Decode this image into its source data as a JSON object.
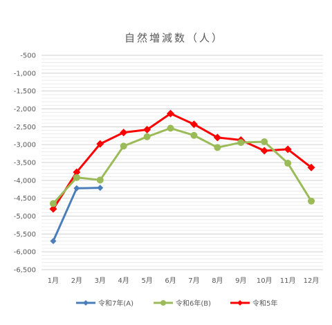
{
  "chart_data": {
    "type": "line",
    "title": "自然増減数（人）",
    "categories": [
      "1月",
      "2月",
      "3月",
      "4月",
      "5月",
      "6月",
      "7月",
      "8月",
      "9月",
      "10月",
      "11月",
      "12月"
    ],
    "ylim": [
      -6500,
      -500
    ],
    "y_ticks": [
      -500,
      -1000,
      -1500,
      -2000,
      -2500,
      -3000,
      -3500,
      -4000,
      -4500,
      -5000,
      -5500,
      -6000,
      -6500
    ],
    "y_tick_labels": [
      "-500",
      "-1,000",
      "-1,500",
      "-2,000",
      "-2,500",
      "-3,000",
      "-3,500",
      "-4,000",
      "-4,500",
      "-5,000",
      "-5,500",
      "-6,000",
      "-6,500"
    ],
    "grid": true,
    "legend_position": "bottom",
    "series": [
      {
        "name": "令和7年(A)",
        "color": "#4a7ebb",
        "marker": "diamond",
        "values": [
          -5700,
          -4220,
          -4210,
          null,
          null,
          null,
          null,
          null,
          null,
          null,
          null,
          null
        ]
      },
      {
        "name": "令和6年(B)",
        "color": "#9bbb59",
        "marker": "circle",
        "values": [
          -4650,
          -3920,
          -3990,
          -3040,
          -2780,
          -2540,
          -2740,
          -3080,
          -2940,
          -2920,
          -3520,
          -4580
        ]
      },
      {
        "name": "令和5年",
        "color": "#ff0000",
        "marker": "diamond",
        "values": [
          -4800,
          -3770,
          -2980,
          -2660,
          -2580,
          -2130,
          -2430,
          -2800,
          -2870,
          -3170,
          -3130,
          -3640
        ]
      }
    ]
  }
}
